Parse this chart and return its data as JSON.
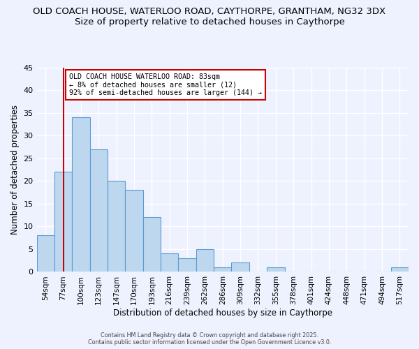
{
  "title_line1": "OLD COACH HOUSE, WATERLOO ROAD, CAYTHORPE, GRANTHAM, NG32 3DX",
  "title_line2": "Size of property relative to detached houses in Caythorpe",
  "xlabel": "Distribution of detached houses by size in Caythorpe",
  "ylabel": "Number of detached properties",
  "bar_labels": [
    "54sqm",
    "77sqm",
    "100sqm",
    "123sqm",
    "147sqm",
    "170sqm",
    "193sqm",
    "216sqm",
    "239sqm",
    "262sqm",
    "286sqm",
    "309sqm",
    "332sqm",
    "355sqm",
    "378sqm",
    "401sqm",
    "424sqm",
    "448sqm",
    "471sqm",
    "494sqm",
    "517sqm"
  ],
  "bar_values": [
    8,
    22,
    34,
    27,
    20,
    18,
    12,
    4,
    3,
    5,
    1,
    2,
    0,
    1,
    0,
    0,
    0,
    0,
    0,
    0,
    1
  ],
  "bar_color": "#bdd7ee",
  "bar_edge_color": "#5b9bd5",
  "ylim": [
    0,
    45
  ],
  "yticks": [
    0,
    5,
    10,
    15,
    20,
    25,
    30,
    35,
    40,
    45
  ],
  "vline_x": 1,
  "vline_color": "#cc0000",
  "annotation_title": "OLD COACH HOUSE WATERLOO ROAD: 83sqm",
  "annotation_line2": "← 8% of detached houses are smaller (12)",
  "annotation_line3": "92% of semi-detached houses are larger (144) →",
  "footer_line1": "Contains HM Land Registry data © Crown copyright and database right 2025.",
  "footer_line2": "Contains public sector information licensed under the Open Government Licence v3.0.",
  "background_color": "#eef2ff",
  "plot_background": "#eef2ff"
}
